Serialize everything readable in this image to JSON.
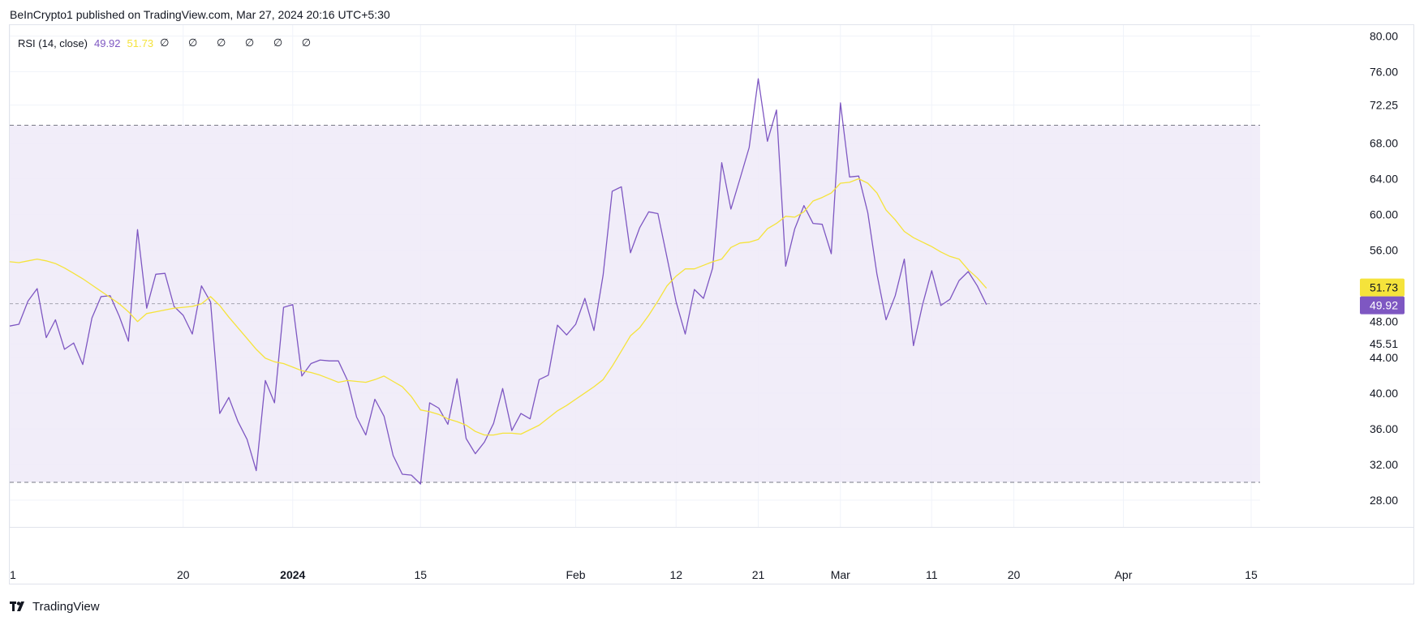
{
  "header": {
    "publish_text": "BeInCrypto1 published on TradingView.com, Mar 27, 2024 20:16 UTC+5:30"
  },
  "legend": {
    "indicator": "RSI (14, close)",
    "rsi_value": "49.92",
    "ma_value": "51.73",
    "na_values": "∅ ∅ ∅ ∅ ∅ ∅"
  },
  "footer": {
    "brand": "TradingView"
  },
  "colors": {
    "rsi": "#7e57c2",
    "ma": "#f5e33b",
    "band_fill": "#f0ebf8",
    "band_line": "#787b86",
    "grid": "#f0f3fa"
  },
  "chart_data": {
    "type": "line",
    "title": "",
    "xlabel": "",
    "ylabel": "",
    "ylim": [
      25.0,
      81.3
    ],
    "y_ticks": [
      "80.00",
      "76.00",
      "72.25",
      "68.00",
      "64.00",
      "60.00",
      "56.00",
      "48.00",
      "45.51",
      "44.00",
      "40.00",
      "36.00",
      "32.00",
      "28.00"
    ],
    "x_ticks": [
      {
        "label": "1",
        "x": 0,
        "bold": false
      },
      {
        "label": "20",
        "x": 19,
        "bold": false
      },
      {
        "label": "2024",
        "x": 31,
        "bold": true
      },
      {
        "label": "15",
        "x": 45,
        "bold": false
      },
      {
        "label": "Feb",
        "x": 62,
        "bold": false
      },
      {
        "label": "12",
        "x": 73,
        "bold": false
      },
      {
        "label": "21",
        "x": 82,
        "bold": false
      },
      {
        "label": "Mar",
        "x": 91,
        "bold": false
      },
      {
        "label": "11",
        "x": 101,
        "bold": false
      },
      {
        "label": "20",
        "x": 110,
        "bold": false
      },
      {
        "label": "Apr",
        "x": 122,
        "bold": false
      },
      {
        "label": "15",
        "x": 136,
        "bold": false
      }
    ],
    "bands": {
      "upper": 70,
      "middle": 50,
      "lower": 30
    },
    "price_labels": {
      "ma": "51.73",
      "rsi": "49.92"
    },
    "series": [
      {
        "values": [
          47.5,
          47.7,
          50.3,
          51.7,
          46.2,
          48.2,
          44.9,
          45.6,
          43.2,
          48.4,
          50.8,
          50.9,
          48.6,
          45.8,
          58.3,
          49.5,
          53.3,
          53.4,
          49.7,
          48.7,
          46.6,
          52.0,
          50.2,
          37.7,
          39.5,
          36.8,
          34.8,
          31.3,
          41.4,
          38.9,
          49.6,
          49.9,
          41.9,
          43.3,
          43.7,
          43.6,
          43.6,
          41.4,
          37.3,
          35.3,
          39.3,
          37.4,
          33.0,
          30.9,
          30.8,
          29.8,
          38.9,
          38.3,
          36.5,
          41.6,
          34.9,
          33.2,
          34.5,
          36.6,
          40.5,
          35.8,
          37.7,
          37.1,
          41.5,
          42.0,
          47.6,
          46.5,
          47.7,
          50.6,
          47.0,
          53.2,
          62.6,
          63.1,
          55.7,
          58.5,
          60.3,
          60.1,
          55.2,
          50.2,
          46.6,
          51.6,
          50.6,
          54.0,
          65.8,
          60.6,
          64.0,
          67.5,
          75.2,
          68.2,
          71.7,
          54.2,
          58.4,
          61.0,
          59.0,
          58.9,
          55.6,
          72.5,
          64.2,
          64.3,
          60.2,
          53.3,
          48.2,
          50.9,
          55.0,
          45.3,
          49.9,
          53.7,
          49.8,
          50.5,
          52.6,
          53.6,
          52.0,
          49.9
        ]
      },
      {
        "values": [
          54.7,
          54.6,
          54.8,
          55.0,
          54.8,
          54.5,
          54.0,
          53.4,
          52.8,
          52.1,
          51.4,
          50.7,
          50.0,
          49.1,
          48.0,
          48.9,
          49.1,
          49.3,
          49.5,
          49.6,
          49.7,
          50.0,
          50.8,
          49.8,
          48.5,
          47.3,
          46.1,
          44.9,
          43.9,
          43.5,
          43.3,
          42.9,
          42.5,
          42.3,
          42.0,
          41.6,
          41.2,
          41.4,
          41.3,
          41.2,
          41.5,
          41.9,
          41.3,
          40.7,
          39.6,
          38.1,
          37.9,
          37.6,
          37.1,
          36.8,
          36.4,
          35.7,
          35.3,
          35.3,
          35.5,
          35.5,
          35.4,
          35.9,
          36.4,
          37.2,
          38.0,
          38.6,
          39.3,
          40.0,
          40.7,
          41.5,
          43.0,
          44.7,
          46.4,
          47.3,
          48.7,
          50.3,
          52.0,
          53.1,
          53.9,
          53.9,
          54.3,
          54.7,
          55.0,
          56.3,
          56.8,
          56.9,
          57.2,
          58.4,
          59.0,
          59.8,
          59.7,
          60.3,
          61.5,
          61.9,
          62.4,
          63.5,
          63.6,
          64.0,
          63.5,
          62.4,
          60.5,
          59.4,
          58.1,
          57.4,
          56.9,
          56.4,
          55.8,
          55.3,
          55.0,
          53.8,
          52.9,
          51.73
        ]
      }
    ]
  }
}
